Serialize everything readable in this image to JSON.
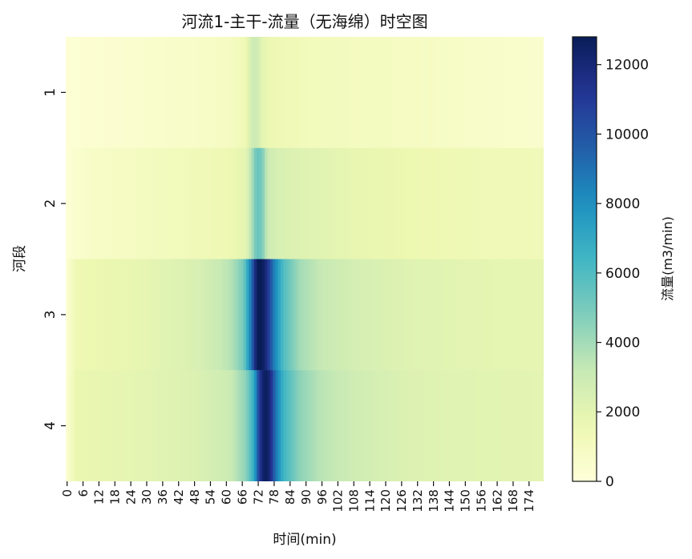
{
  "chart_data": {
    "type": "heatmap",
    "title": "河流1-主干-流量（无海绵）时空图",
    "xlabel": "时间(min)",
    "ylabel": "河段",
    "rows": [
      "1",
      "2",
      "3",
      "4"
    ],
    "x_ticks": [
      "0",
      "6",
      "12",
      "18",
      "24",
      "30",
      "36",
      "42",
      "48",
      "54",
      "60",
      "66",
      "72",
      "78",
      "84",
      "90",
      "96",
      "102",
      "108",
      "114",
      "120",
      "126",
      "132",
      "138",
      "144",
      "150",
      "156",
      "162",
      "168",
      "174"
    ],
    "x_range": [
      0,
      180
    ],
    "colorbar": {
      "label": "流量(m3/min)",
      "range": [
        0,
        12800
      ],
      "ticks": [
        "0",
        "2000",
        "4000",
        "6000",
        "8000",
        "10000",
        "12000"
      ],
      "colormap": "YlGnBu"
    },
    "series": [
      {
        "name": "1",
        "points": [
          [
            0,
            200
          ],
          [
            10,
            300
          ],
          [
            30,
            500
          ],
          [
            50,
            700
          ],
          [
            62,
            900
          ],
          [
            68,
            1500
          ],
          [
            70,
            2800
          ],
          [
            72,
            3000
          ],
          [
            74,
            2000
          ],
          [
            78,
            1500
          ],
          [
            90,
            1200
          ],
          [
            110,
            1000
          ],
          [
            130,
            900
          ],
          [
            150,
            700
          ],
          [
            175,
            500
          ],
          [
            180,
            500
          ]
        ]
      },
      {
        "name": "2",
        "points": [
          [
            0,
            100
          ],
          [
            3,
            400
          ],
          [
            10,
            700
          ],
          [
            30,
            1000
          ],
          [
            50,
            1300
          ],
          [
            62,
            1500
          ],
          [
            68,
            2000
          ],
          [
            71,
            4500
          ],
          [
            72,
            5500
          ],
          [
            74,
            5000
          ],
          [
            76,
            3000
          ],
          [
            80,
            2500
          ],
          [
            90,
            2200
          ],
          [
            110,
            1800
          ],
          [
            130,
            1600
          ],
          [
            150,
            1400
          ],
          [
            175,
            1300
          ],
          [
            180,
            1300
          ]
        ]
      },
      {
        "name": "3",
        "points": [
          [
            0,
            100
          ],
          [
            4,
            1500
          ],
          [
            10,
            1600
          ],
          [
            30,
            1900
          ],
          [
            50,
            2500
          ],
          [
            62,
            3500
          ],
          [
            67,
            5000
          ],
          [
            70,
            9000
          ],
          [
            72,
            12800
          ],
          [
            74,
            12800
          ],
          [
            76,
            11500
          ],
          [
            78,
            9000
          ],
          [
            82,
            6000
          ],
          [
            88,
            4000
          ],
          [
            96,
            3200
          ],
          [
            110,
            2600
          ],
          [
            130,
            2200
          ],
          [
            150,
            2000
          ],
          [
            175,
            1900
          ],
          [
            180,
            1900
          ]
        ]
      },
      {
        "name": "4",
        "points": [
          [
            0,
            100
          ],
          [
            4,
            1700
          ],
          [
            10,
            1800
          ],
          [
            30,
            2000
          ],
          [
            50,
            2400
          ],
          [
            62,
            3000
          ],
          [
            68,
            4500
          ],
          [
            71,
            7000
          ],
          [
            73,
            11000
          ],
          [
            75,
            12800
          ],
          [
            77,
            12000
          ],
          [
            79,
            9000
          ],
          [
            82,
            6500
          ],
          [
            88,
            4500
          ],
          [
            96,
            3500
          ],
          [
            110,
            2800
          ],
          [
            130,
            2300
          ],
          [
            150,
            2100
          ],
          [
            175,
            2000
          ],
          [
            180,
            2000
          ]
        ]
      }
    ]
  }
}
